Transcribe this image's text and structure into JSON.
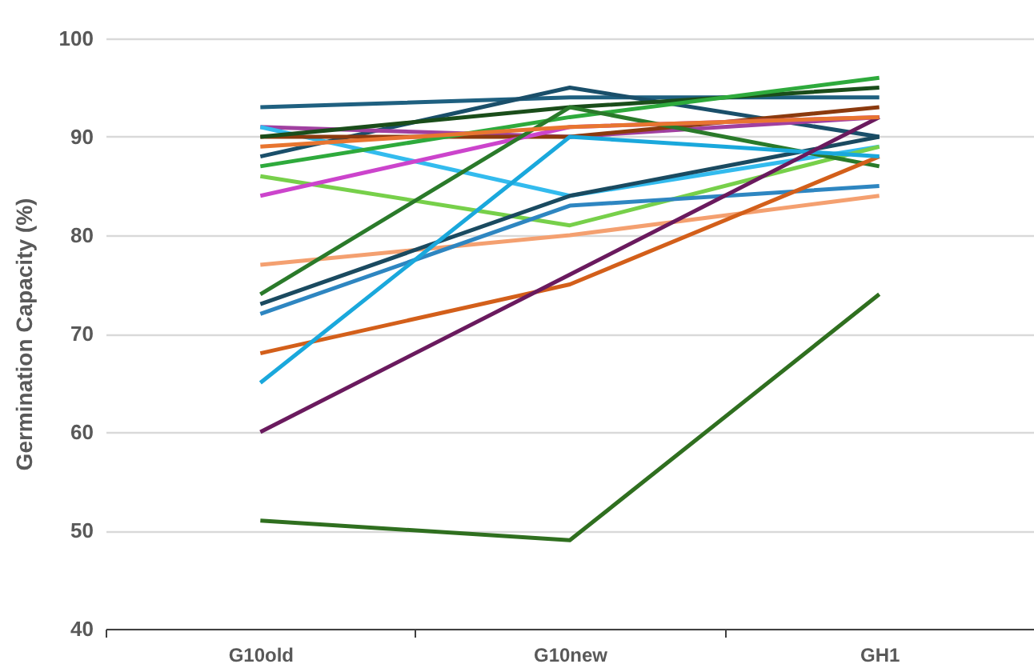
{
  "chart_data": {
    "type": "line",
    "ylabel": "Germination Capacity (%)",
    "categories": [
      "G10old",
      "G10new",
      "GH1"
    ],
    "ylim": [
      40,
      100
    ],
    "yticks": [
      40,
      50,
      60,
      70,
      80,
      90,
      100
    ],
    "grid": "y",
    "legend": false,
    "marker": "none",
    "line_style": "solid",
    "series": [
      {
        "color": "#1f6080",
        "values": [
          93,
          94,
          94
        ]
      },
      {
        "color": "#1a4f6a",
        "values": [
          88,
          95,
          90
        ]
      },
      {
        "color": "#a040a0",
        "values": [
          91,
          90,
          92
        ]
      },
      {
        "color": "#33bbee",
        "values": [
          91,
          84,
          89
        ]
      },
      {
        "color": "#8b3a0e",
        "values": [
          90,
          90,
          93
        ]
      },
      {
        "color": "#1a4d1a",
        "values": [
          90,
          93,
          95
        ]
      },
      {
        "color": "#2eaa3c",
        "values": [
          87,
          92,
          96
        ]
      },
      {
        "color": "#77d04a",
        "values": [
          86,
          81,
          89
        ]
      },
      {
        "color": "#cc44cc",
        "values": [
          84,
          91,
          92
        ]
      },
      {
        "color": "#f4a070",
        "values": [
          77,
          80,
          84
        ]
      },
      {
        "color": "#2a7a2a",
        "values": [
          74,
          93,
          87
        ]
      },
      {
        "color": "#1a4a60",
        "values": [
          73,
          84,
          90
        ]
      },
      {
        "color": "#2e86c1",
        "values": [
          72,
          83,
          85
        ]
      },
      {
        "color": "#d35f1a",
        "values": [
          68,
          75,
          88
        ]
      },
      {
        "color": "#1aa8dc",
        "values": [
          65,
          90,
          88
        ]
      },
      {
        "color": "#6a1a5e",
        "values": [
          60,
          76,
          92
        ]
      },
      {
        "color": "#2f6f1f",
        "values": [
          51,
          49,
          74
        ]
      },
      {
        "color": "#e87530",
        "values": [
          89,
          91,
          92
        ]
      }
    ]
  }
}
